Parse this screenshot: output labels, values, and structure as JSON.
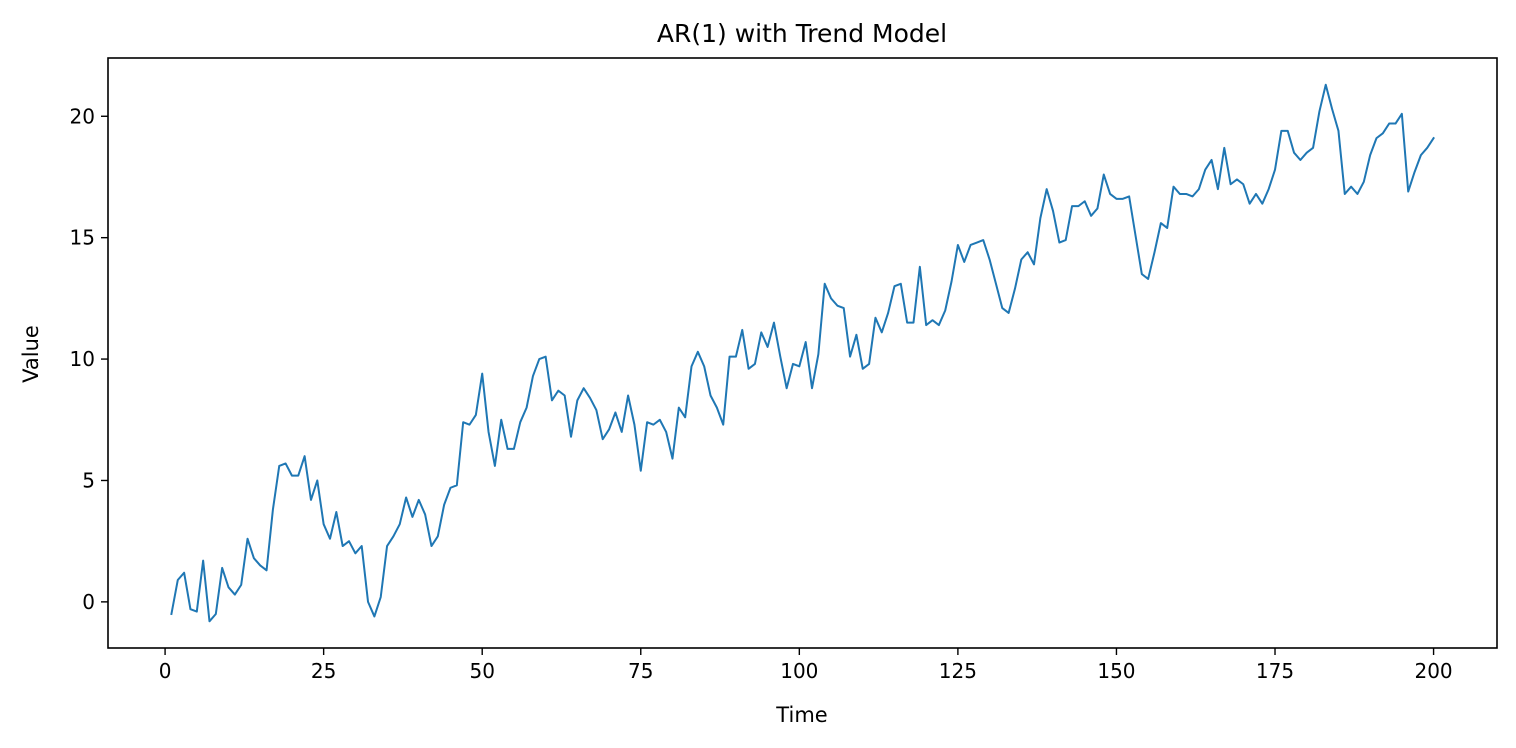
{
  "chart_data": {
    "type": "line",
    "title": "AR(1) with Trend Model",
    "xlabel": "Time",
    "ylabel": "Value",
    "xlim": [
      -9,
      210
    ],
    "ylim": [
      -1.9,
      22.4
    ],
    "xticks": [
      0,
      25,
      50,
      75,
      100,
      125,
      150,
      175,
      200
    ],
    "yticks": [
      0,
      5,
      10,
      15,
      20
    ],
    "grid": false,
    "legend": null,
    "line_color": "#1f77b4",
    "series": [
      {
        "x": [
          1,
          2,
          3,
          4,
          5,
          6,
          7,
          8,
          9,
          10,
          11,
          12,
          13,
          14,
          15,
          16,
          17,
          18,
          19,
          20,
          21,
          22,
          23,
          24,
          25,
          26,
          27,
          28,
          29,
          30,
          31,
          32,
          33,
          34,
          35,
          36,
          37,
          38,
          39,
          40,
          41,
          42,
          43,
          44,
          45,
          46,
          47,
          48,
          49,
          50,
          51,
          52,
          53,
          54,
          55,
          56,
          57,
          58,
          59,
          60,
          61,
          62,
          63,
          64,
          65,
          66,
          67,
          68,
          69,
          70,
          71,
          72,
          73,
          74,
          75,
          76,
          77,
          78,
          79,
          80,
          81,
          82,
          83,
          84,
          85,
          86,
          87,
          88,
          89,
          90,
          91,
          92,
          93,
          94,
          95,
          96,
          97,
          98,
          99,
          100,
          101,
          102,
          103,
          104,
          105,
          106,
          107,
          108,
          109,
          110,
          111,
          112,
          113,
          114,
          115,
          116,
          117,
          118,
          119,
          120,
          121,
          122,
          123,
          124,
          125,
          126,
          127,
          128,
          129,
          130,
          131,
          132,
          133,
          134,
          135,
          136,
          137,
          138,
          139,
          140,
          141,
          142,
          143,
          144,
          145,
          146,
          147,
          148,
          149,
          150,
          151,
          152,
          153,
          154,
          155,
          156,
          157,
          158,
          159,
          160,
          161,
          162,
          163,
          164,
          165,
          166,
          167,
          168,
          169,
          170,
          171,
          172,
          173,
          174,
          175,
          176,
          177,
          178,
          179,
          180,
          181,
          182,
          183,
          184,
          185,
          186,
          187,
          188,
          189,
          190,
          191,
          192,
          193,
          194,
          195,
          196,
          197,
          198,
          199,
          200
        ],
        "y": [
          -0.5,
          0.9,
          1.2,
          -0.3,
          -0.4,
          1.7,
          -0.8,
          -0.5,
          1.4,
          0.6,
          0.3,
          0.7,
          2.6,
          1.8,
          1.5,
          1.3,
          3.8,
          5.6,
          5.7,
          5.2,
          5.2,
          6.0,
          4.2,
          5.0,
          3.2,
          2.6,
          3.7,
          2.3,
          2.5,
          2.0,
          2.3,
          0.0,
          -0.6,
          0.2,
          2.3,
          2.7,
          3.2,
          4.3,
          3.5,
          4.2,
          3.6,
          2.3,
          2.7,
          4.0,
          4.7,
          4.8,
          7.4,
          7.3,
          7.7,
          9.4,
          7.0,
          5.6,
          7.5,
          6.3,
          6.3,
          7.4,
          8.0,
          9.3,
          10.0,
          10.1,
          8.3,
          8.7,
          8.5,
          6.8,
          8.3,
          8.8,
          8.4,
          7.9,
          6.7,
          7.1,
          7.8,
          7.0,
          8.5,
          7.3,
          5.4,
          7.4,
          7.3,
          7.5,
          7.0,
          5.9,
          8.0,
          7.6,
          9.7,
          10.3,
          9.7,
          8.5,
          8.0,
          7.3,
          10.1,
          10.1,
          11.2,
          9.6,
          9.8,
          11.1,
          10.5,
          11.5,
          10.1,
          8.8,
          9.8,
          9.7,
          10.7,
          8.8,
          10.2,
          13.1,
          12.5,
          12.2,
          12.1,
          10.1,
          11.0,
          9.6,
          9.8,
          11.7,
          11.1,
          11.9,
          13.0,
          13.1,
          11.5,
          11.5,
          13.8,
          11.4,
          11.6,
          11.4,
          12.0,
          13.2,
          14.7,
          14.0,
          14.7,
          14.8,
          14.9,
          14.1,
          13.1,
          12.1,
          11.9,
          12.9,
          14.1,
          14.4,
          13.9,
          15.8,
          17.0,
          16.1,
          14.8,
          14.9,
          16.3,
          16.3,
          16.5,
          15.9,
          16.2,
          17.6,
          16.8,
          16.6,
          16.6,
          16.7,
          15.1,
          13.5,
          13.3,
          14.4,
          15.6,
          15.4,
          17.1,
          16.8,
          16.8,
          16.7,
          17.0,
          17.8,
          18.2,
          17.0,
          18.7,
          17.2,
          17.4,
          17.2,
          16.4,
          16.8,
          16.4,
          17.0,
          17.8,
          19.4,
          19.4,
          18.5,
          18.2,
          18.5,
          18.7,
          20.2,
          21.3,
          20.3,
          19.4,
          16.8,
          17.1,
          16.8,
          17.3,
          18.4,
          19.1,
          19.3,
          19.7,
          19.7,
          20.1,
          16.9,
          17.7,
          18.4,
          18.7,
          19.1
        ]
      }
    ]
  }
}
